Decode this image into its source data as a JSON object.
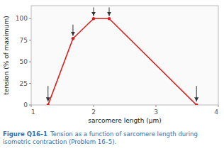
{
  "chart_data": {
    "type": "line",
    "x": [
      1.27,
      1.67,
      2.0,
      2.25,
      3.65
    ],
    "values": [
      0,
      77,
      100,
      100,
      0
    ],
    "color": "#d62020",
    "marker": "circle",
    "xlabel": "sarcomere length (μm)",
    "ylabel": "tension (% of maximum)",
    "xlim": [
      1,
      4
    ],
    "ylim": [
      0,
      115
    ],
    "xticks": [
      1,
      2,
      3,
      4
    ],
    "yticks": [
      0,
      25,
      50,
      75,
      100
    ],
    "grid": false,
    "caption": {
      "label": "Figure Q16–1",
      "text": "Tension as a function of sarcomere length during\nisometric contraction (Problem 16–5)."
    },
    "annotations": [
      {
        "x_start": 1.27,
        "y_start": 22,
        "x_end": 1.27,
        "y_end": 4
      },
      {
        "x_start": 1.67,
        "y_start": 93,
        "x_end": 1.67,
        "y_end": 80
      },
      {
        "x_start": 2.0,
        "y_start": 113,
        "x_end": 2.0,
        "y_end": 103
      },
      {
        "x_start": 2.25,
        "y_start": 113,
        "x_end": 2.25,
        "y_end": 103
      },
      {
        "x_start": 3.65,
        "y_start": 22,
        "x_end": 3.65,
        "y_end": 4
      }
    ]
  }
}
